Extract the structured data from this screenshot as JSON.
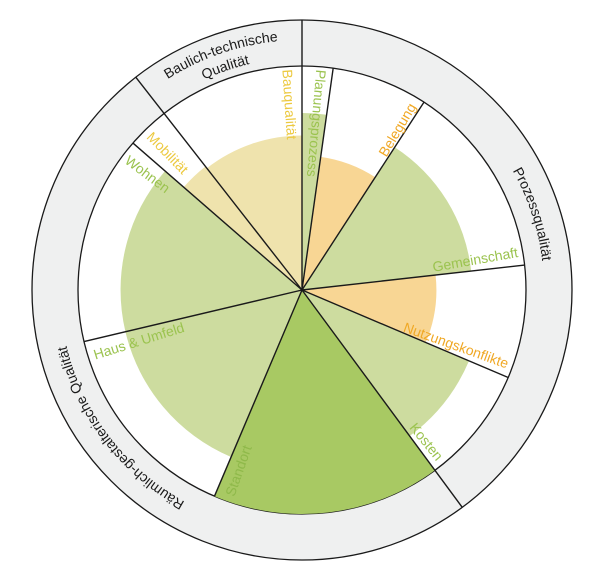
{
  "chart_data": {
    "type": "pie",
    "variant": "polar-area",
    "title": "",
    "value_scale": "radius as fraction of full scale (1.0 = full)",
    "groups": [
      {
        "name": "Baulich-technische",
        "name_line2": "Qualität"
      },
      {
        "name": "Prozessqualität"
      },
      {
        "name": "Räumlich-gestalterische Qualität"
      }
    ],
    "sectors": [
      {
        "label": "Planungsprozess",
        "group": 1,
        "value": 0.79,
        "fill": "#cddc9f",
        "label_color": "#9bc34f"
      },
      {
        "label": "Belegung",
        "group": 1,
        "value": 0.6,
        "fill": "#f8d694",
        "label_color": "#f0a825"
      },
      {
        "label": "Gemeinschaft",
        "group": 1,
        "value": 0.76,
        "fill": "#cddc9f",
        "label_color": "#9bc34f"
      },
      {
        "label": "Nutzungskonflikte",
        "group": 1,
        "value": 0.6,
        "fill": "#f8d694",
        "label_color": "#f0a825"
      },
      {
        "label": "Kosten",
        "group": 1,
        "value": 0.81,
        "fill": "#cddc9f",
        "label_color": "#9bc34f"
      },
      {
        "label": "Standort",
        "group": 2,
        "value": 1.0,
        "fill": "#a8c963",
        "label_color": "#8fb94a"
      },
      {
        "label": "Haus & Umfeld",
        "group": 2,
        "value": 0.81,
        "fill": "#cddc9f",
        "label_color": "#9bc34f"
      },
      {
        "label": "Wohnen",
        "group": 2,
        "value": 0.81,
        "fill": "#cddc9f",
        "label_color": "#9bc34f"
      },
      {
        "label": "Mobilität",
        "group": 0,
        "value": 0.7,
        "fill": "#efe3ad",
        "label_color": "#ecc93f"
      },
      {
        "label": "Bauqualität",
        "group": 0,
        "value": 0.69,
        "fill": "#efe3ad",
        "label_color": "#ecc93f"
      }
    ],
    "ring_color": "#eff0f0",
    "line_color": "#1a1a1a"
  }
}
